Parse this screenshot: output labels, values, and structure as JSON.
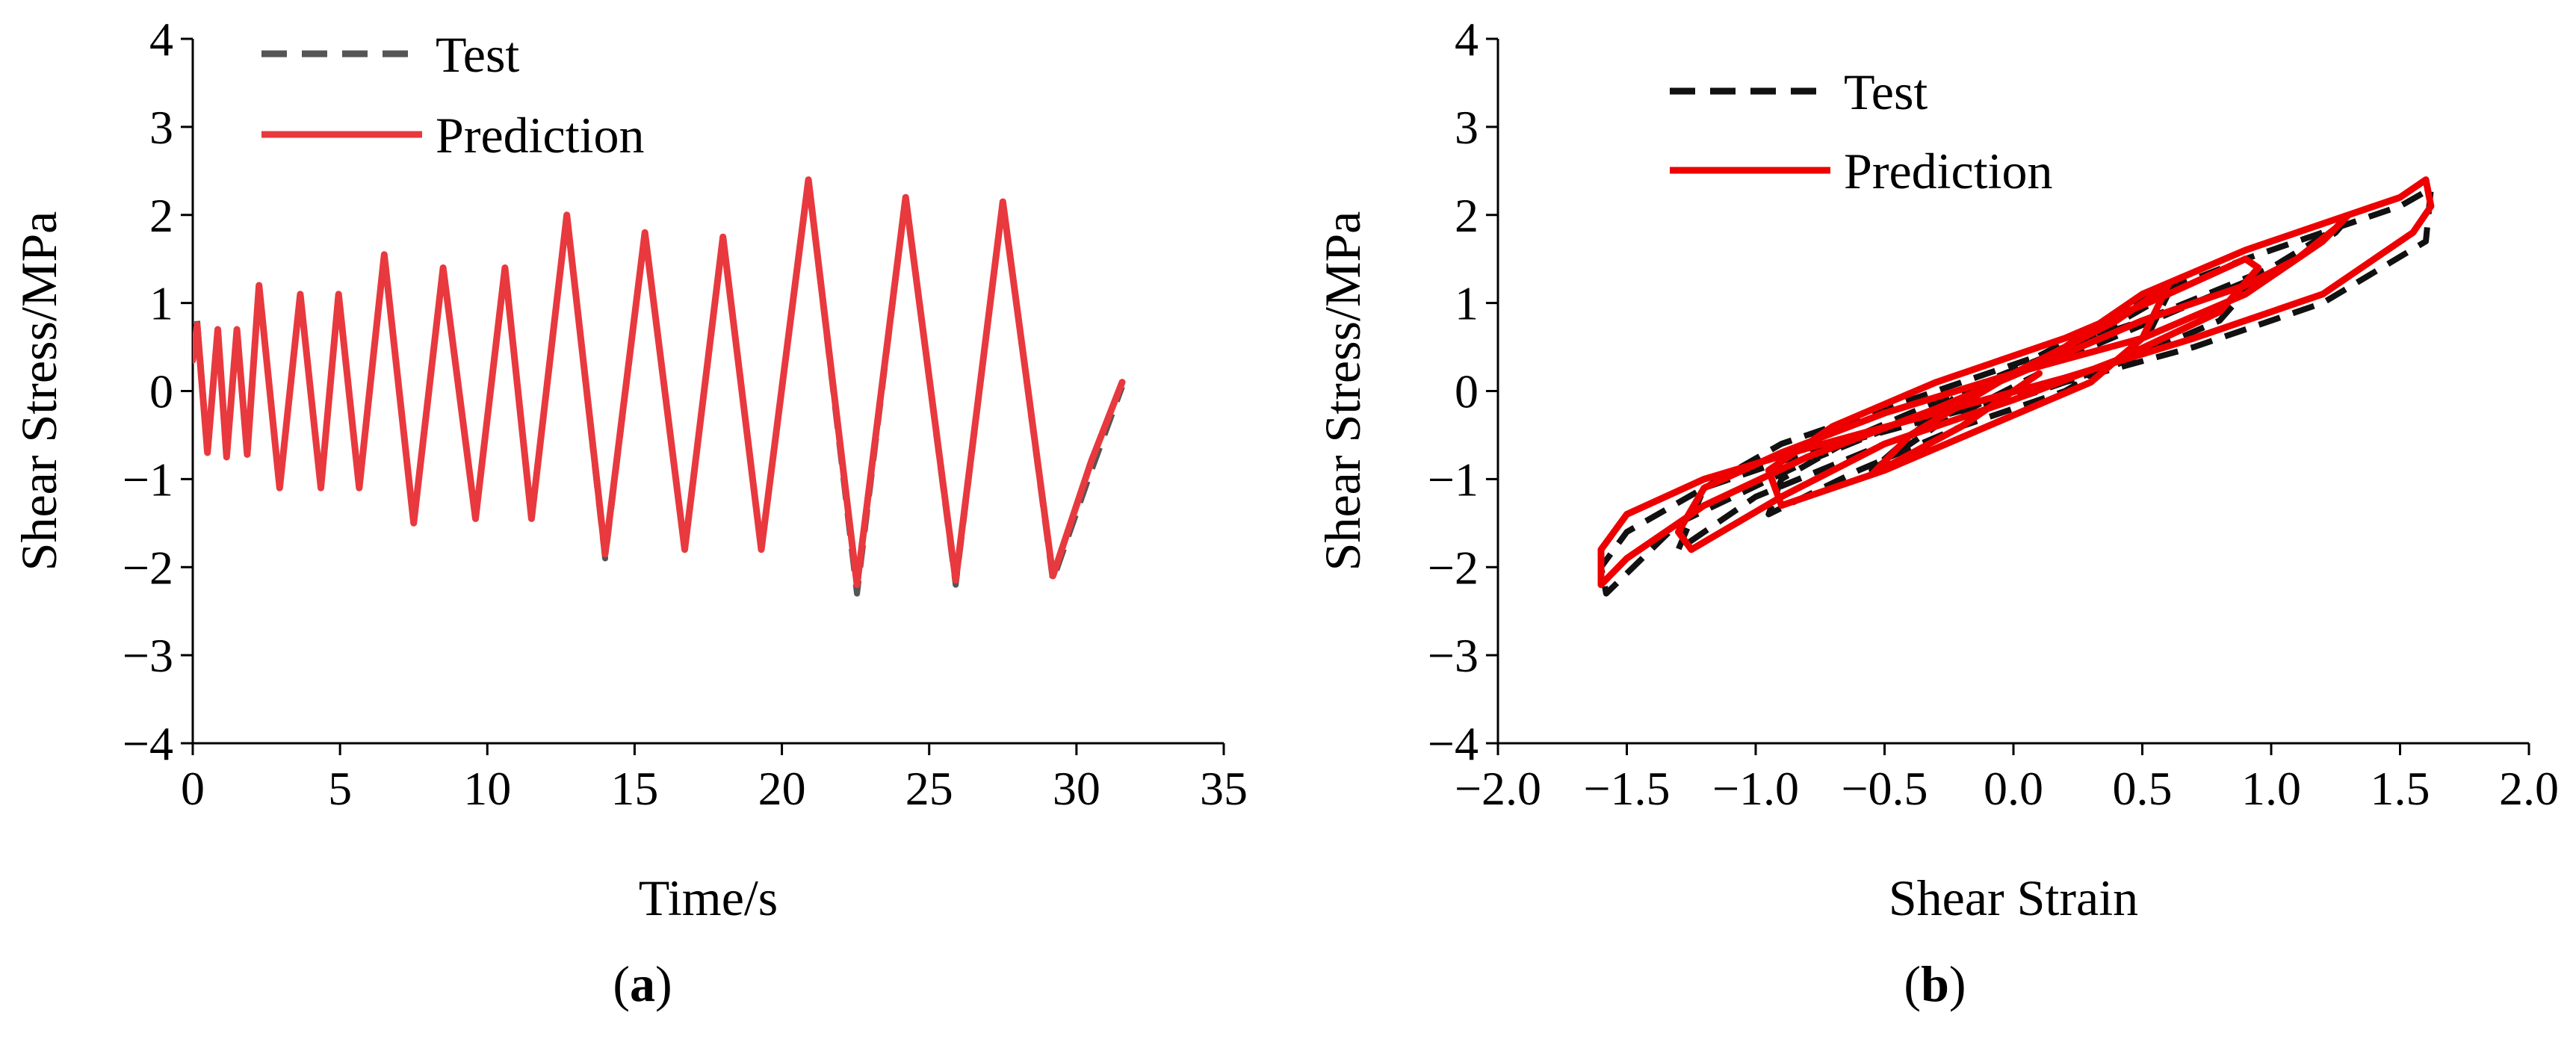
{
  "chart_data": [
    {
      "type": "line",
      "panel": "a",
      "caption": "(a)",
      "xlabel": "Time/s",
      "ylabel": "Shear Stress/MPa",
      "xlim": [
        0,
        35
      ],
      "ylim": [
        -4,
        4
      ],
      "xticks": [
        0,
        5,
        10,
        15,
        20,
        25,
        30,
        35
      ],
      "yticks": [
        -4,
        -3,
        -2,
        -1,
        0,
        1,
        2,
        3,
        4
      ],
      "xtick_labels": [
        "0",
        "5",
        "10",
        "15",
        "20",
        "25",
        "30",
        "35"
      ],
      "ytick_labels": [
        "−4",
        "−3",
        "−2",
        "−1",
        "0",
        "1",
        "2",
        "3",
        "4"
      ],
      "legend_position": "top-left",
      "series": [
        {
          "name": "Test",
          "style": "dashed",
          "color": "#555555",
          "x": [
            0,
            0.15,
            0.5,
            0.85,
            1.15,
            1.5,
            1.85,
            2.25,
            2.95,
            3.65,
            4.35,
            4.95,
            5.65,
            6.5,
            7.5,
            8.5,
            9.6,
            10.6,
            11.5,
            12.7,
            14.0,
            15.35,
            16.7,
            18.0,
            19.3,
            20.9,
            22.55,
            24.2,
            25.9,
            27.5,
            29.2,
            30.4,
            31.55
          ],
          "y": [
            0.4,
            0.8,
            -0.7,
            0.7,
            -0.75,
            0.7,
            -0.75,
            1.2,
            -1.1,
            1.1,
            -1.1,
            1.1,
            -1.1,
            1.55,
            -1.5,
            1.4,
            -1.45,
            1.4,
            -1.45,
            2.0,
            -1.9,
            1.8,
            -1.8,
            1.75,
            -1.8,
            2.4,
            -2.3,
            2.2,
            -2.2,
            2.15,
            -2.15,
            -1.0,
            0.05
          ]
        },
        {
          "name": "Prediction",
          "style": "solid",
          "color": "#e8393e",
          "x": [
            0,
            0.15,
            0.5,
            0.85,
            1.15,
            1.5,
            1.85,
            2.25,
            2.95,
            3.65,
            4.35,
            4.95,
            5.65,
            6.5,
            7.5,
            8.5,
            9.6,
            10.6,
            11.5,
            12.7,
            14.0,
            15.35,
            16.7,
            18.0,
            19.3,
            20.9,
            22.55,
            24.2,
            25.9,
            27.5,
            29.2,
            30.5,
            31.55
          ],
          "y": [
            0.35,
            0.75,
            -0.7,
            0.7,
            -0.75,
            0.7,
            -0.72,
            1.2,
            -1.1,
            1.1,
            -1.1,
            1.1,
            -1.1,
            1.55,
            -1.5,
            1.4,
            -1.45,
            1.4,
            -1.45,
            2.0,
            -1.85,
            1.8,
            -1.8,
            1.75,
            -1.8,
            2.4,
            -2.2,
            2.2,
            -2.15,
            2.15,
            -2.1,
            -0.8,
            0.1
          ]
        }
      ]
    },
    {
      "type": "line",
      "panel": "b",
      "caption": "(b)",
      "xlabel": "Shear Strain",
      "ylabel": "Shear Stress/MPa",
      "xlim": [
        -2.0,
        2.0
      ],
      "ylim": [
        -4,
        4
      ],
      "xticks": [
        -2.0,
        -1.5,
        -1.0,
        -0.5,
        0.0,
        0.5,
        1.0,
        1.5,
        2.0
      ],
      "yticks": [
        -4,
        -3,
        -2,
        -1,
        0,
        1,
        2,
        3,
        4
      ],
      "xtick_labels": [
        "−2.0",
        "−1.5",
        "−1.0",
        "−0.5",
        "0.0",
        "0.5",
        "1.0",
        "1.5",
        "2.0"
      ],
      "ytick_labels": [
        "−4",
        "−3",
        "−2",
        "−1",
        "0",
        "1",
        "2",
        "3",
        "4"
      ],
      "legend_position": "top-left",
      "series": [
        {
          "name": "Test",
          "style": "dashed",
          "color": "#111111",
          "x": [
            0.1,
            0.55,
            0.9,
            1.2,
            1.5,
            1.62,
            1.6,
            1.2,
            0.7,
            0.2,
            -0.3,
            -0.8,
            -1.2,
            -1.5,
            -1.6,
            -1.58,
            -1.3,
            -0.8,
            -0.3,
            0.1,
            0.5,
            0.9,
            1.1,
            1.25,
            1.28,
            1.0,
            0.5,
            0.0,
            -0.5,
            -0.9,
            -1.2,
            -1.3,
            -1.0,
            -0.5,
            0.0,
            0.4,
            0.8,
            0.95,
            0.7,
            0.3,
            -0.2,
            -0.6,
            -0.9,
            -0.95,
            -0.6,
            -0.2,
            0.2,
            0.5,
            0.6,
            0.3,
            -0.2,
            -0.55,
            -0.3,
            0.1
          ],
          "y": [
            0.4,
            1.1,
            1.5,
            1.8,
            2.1,
            2.3,
            1.7,
            1.0,
            0.5,
            0.1,
            -0.3,
            -0.7,
            -1.1,
            -1.6,
            -2.0,
            -2.3,
            -1.5,
            -0.8,
            -0.2,
            0.3,
            0.8,
            1.2,
            1.5,
            1.8,
            1.9,
            1.4,
            0.8,
            0.3,
            -0.2,
            -0.6,
            -1.1,
            -1.8,
            -1.2,
            -0.6,
            -0.1,
            0.3,
            0.8,
            1.3,
            1.0,
            0.5,
            0.0,
            -0.5,
            -1.0,
            -1.4,
            -0.9,
            -0.4,
            0.0,
            0.5,
            1.1,
            0.6,
            0.0,
            -0.9,
            -0.4,
            0.2
          ]
        },
        {
          "name": "Prediction",
          "style": "solid",
          "color": "#ee0000",
          "x": [
            0.1,
            0.5,
            0.9,
            1.2,
            1.5,
            1.6,
            1.62,
            1.55,
            1.2,
            0.7,
            0.2,
            -0.3,
            -0.8,
            -1.2,
            -1.5,
            -1.6,
            -1.6,
            -1.5,
            -1.2,
            -0.8,
            -0.3,
            0.1,
            0.5,
            0.9,
            1.1,
            1.25,
            1.3,
            1.2,
            0.9,
            0.5,
            0.0,
            -0.5,
            -0.9,
            -1.2,
            -1.3,
            -1.25,
            -0.9,
            -0.5,
            0.0,
            0.4,
            0.8,
            0.95,
            0.9,
            0.6,
            0.2,
            -0.3,
            -0.7,
            -0.95,
            -0.9,
            -0.5,
            -0.1,
            0.3,
            0.5,
            0.6,
            0.4,
            0.0,
            -0.4,
            -0.55,
            -0.2,
            0.1
          ],
          "y": [
            0.3,
            1.1,
            1.6,
            1.9,
            2.2,
            2.4,
            2.1,
            1.8,
            1.1,
            0.6,
            0.15,
            -0.25,
            -0.65,
            -1.0,
            -1.4,
            -1.8,
            -2.2,
            -1.9,
            -1.3,
            -0.75,
            -0.2,
            0.3,
            0.8,
            1.2,
            1.5,
            1.85,
            2.0,
            1.7,
            1.1,
            0.6,
            0.2,
            -0.25,
            -0.7,
            -1.1,
            -1.6,
            -1.8,
            -1.2,
            -0.6,
            -0.1,
            0.35,
            0.9,
            1.4,
            1.5,
            1.1,
            0.6,
            0.1,
            -0.4,
            -0.9,
            -1.3,
            -0.9,
            -0.4,
            0.1,
            0.6,
            1.2,
            0.8,
            0.2,
            -0.5,
            -0.95,
            -0.4,
            0.2
          ]
        }
      ]
    }
  ]
}
